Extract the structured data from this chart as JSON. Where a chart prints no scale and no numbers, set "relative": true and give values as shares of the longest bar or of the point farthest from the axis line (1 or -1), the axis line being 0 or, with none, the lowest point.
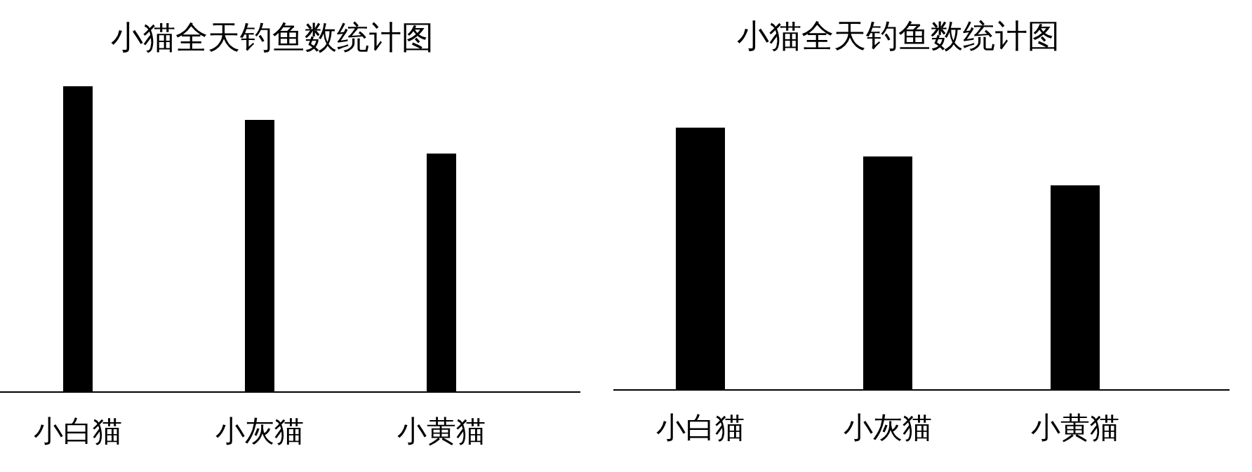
{
  "chart_data": [
    {
      "type": "bar",
      "title": "小猫全天钓鱼数统计图",
      "categories": [
        "小白猫",
        "小灰猫",
        "小黄猫"
      ],
      "values": [
        1,
        0.89,
        0.78
      ],
      "relative": true,
      "color": "#000000"
    },
    {
      "type": "bar",
      "title": "小猫全天钓鱼数统计图",
      "categories": [
        "小白猫",
        "小灰猫",
        "小黄猫"
      ],
      "values": [
        1,
        0.89,
        0.78
      ],
      "relative": true,
      "color": "#000000"
    }
  ]
}
